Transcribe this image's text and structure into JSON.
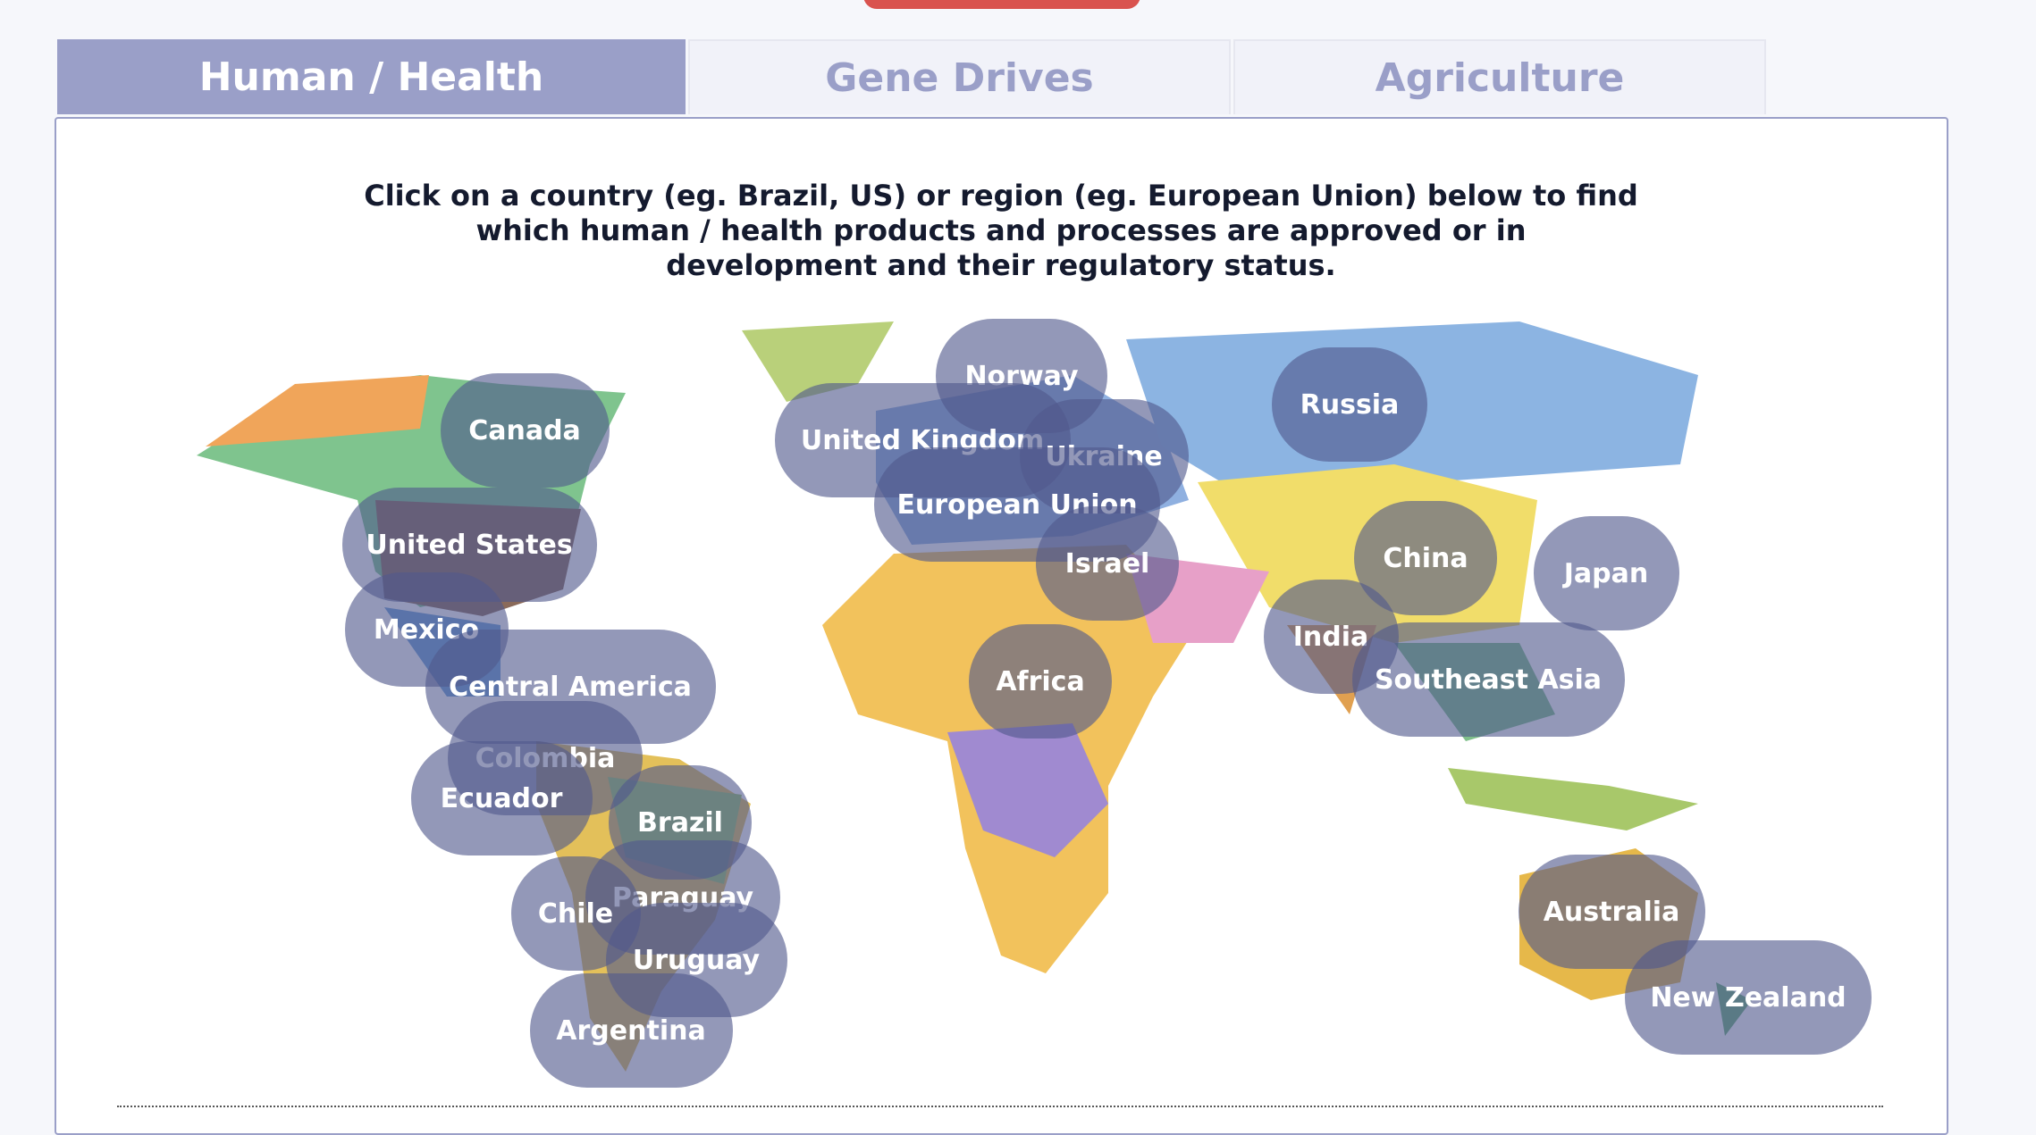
{
  "tabs": [
    "Human / Health",
    "Gene Drives",
    "Agriculture"
  ],
  "intro": [
    "Click on a country (eg. Brazil, US) or region (eg. European Union) below to find",
    "which human / health products and processes are approved or in",
    "development and their regulatory status."
  ],
  "regions": [
    "Norway",
    "Canada",
    "Russia",
    "United Kingdom",
    "Ukraine",
    "European Union",
    "United States",
    "Israel",
    "China",
    "Japan",
    "Mexico",
    "India",
    "Africa",
    "Southeast Asia",
    "Central America",
    "Colombia",
    "Ecuador",
    "Brazil",
    "Paraguay",
    "Chile",
    "Uruguay",
    "Argentina",
    "Australia",
    "New Zealand"
  ]
}
